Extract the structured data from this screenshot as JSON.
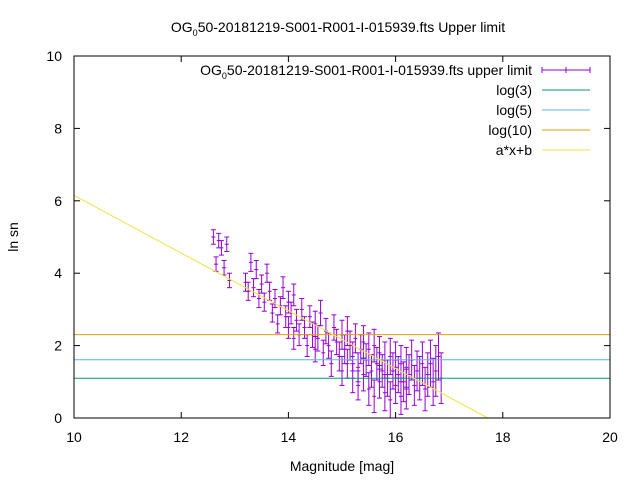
{
  "chart_data": {
    "type": "scatter",
    "title": {
      "main": "OG",
      "sub": "0",
      "rest": "50-20181219-S001-R001-I-015939.fts Upper limit"
    },
    "xlabel": "Magnitude [mag]",
    "ylabel": "ln sn",
    "xlim": [
      10,
      20
    ],
    "ylim": [
      0,
      10
    ],
    "x_ticks": [
      "10",
      "12",
      "14",
      "16",
      "18",
      "20"
    ],
    "y_ticks": [
      "0",
      "2",
      "4",
      "6",
      "8",
      "10"
    ],
    "grid": false,
    "legend_position": "top-right",
    "series": [
      {
        "name": {
          "main": "OG",
          "sub": "0",
          "rest": "50-20181219-S001-R001-I-015939.fts upper limit"
        },
        "kind": "errorbars",
        "color": "#9400d3",
        "points": [
          [
            12.6,
            5.0,
            0.2
          ],
          [
            12.65,
            4.25,
            0.2
          ],
          [
            12.7,
            4.9,
            0.2
          ],
          [
            12.75,
            4.7,
            0.2
          ],
          [
            12.8,
            4.15,
            0.2
          ],
          [
            12.85,
            4.8,
            0.2
          ],
          [
            12.9,
            3.8,
            0.2
          ],
          [
            13.2,
            3.75,
            0.25
          ],
          [
            13.25,
            3.5,
            0.25
          ],
          [
            13.3,
            4.3,
            0.25
          ],
          [
            13.35,
            3.6,
            0.25
          ],
          [
            13.4,
            4.1,
            0.25
          ],
          [
            13.45,
            3.3,
            0.25
          ],
          [
            13.5,
            3.7,
            0.25
          ],
          [
            13.55,
            3.2,
            0.25
          ],
          [
            13.6,
            4.0,
            0.25
          ],
          [
            13.65,
            3.5,
            0.25
          ],
          [
            13.7,
            2.9,
            0.25
          ],
          [
            13.75,
            3.3,
            0.25
          ],
          [
            13.8,
            2.6,
            0.25
          ],
          [
            13.85,
            3.1,
            0.25
          ],
          [
            13.9,
            3.6,
            0.3
          ],
          [
            13.95,
            2.8,
            0.3
          ],
          [
            14.0,
            3.2,
            0.3
          ],
          [
            14.0,
            2.5,
            0.3
          ],
          [
            14.05,
            2.9,
            0.3
          ],
          [
            14.1,
            2.2,
            0.3
          ],
          [
            14.1,
            3.4,
            0.3
          ],
          [
            14.15,
            2.7,
            0.3
          ],
          [
            14.2,
            2.3,
            0.3
          ],
          [
            14.25,
            3.0,
            0.3
          ],
          [
            14.3,
            2.5,
            0.3
          ],
          [
            14.35,
            2.0,
            0.3
          ],
          [
            14.4,
            2.8,
            0.3
          ],
          [
            14.45,
            2.3,
            0.35
          ],
          [
            14.5,
            1.9,
            0.35
          ],
          [
            14.5,
            2.6,
            0.35
          ],
          [
            14.55,
            2.2,
            0.35
          ],
          [
            14.6,
            2.9,
            0.35
          ],
          [
            14.65,
            1.8,
            0.35
          ],
          [
            14.7,
            2.4,
            0.35
          ],
          [
            14.75,
            2.0,
            0.35
          ],
          [
            14.8,
            1.5,
            0.35
          ],
          [
            14.85,
            2.5,
            0.35
          ],
          [
            14.9,
            2.1,
            0.35
          ],
          [
            14.95,
            1.7,
            0.4
          ],
          [
            15.0,
            2.3,
            0.4
          ],
          [
            15.0,
            1.3,
            0.4
          ],
          [
            15.05,
            1.9,
            0.4
          ],
          [
            15.1,
            1.5,
            0.4
          ],
          [
            15.1,
            2.4,
            0.4
          ],
          [
            15.15,
            2.0,
            0.4
          ],
          [
            15.2,
            1.1,
            0.4
          ],
          [
            15.2,
            1.7,
            0.4
          ],
          [
            15.25,
            2.2,
            0.4
          ],
          [
            15.3,
            1.4,
            0.4
          ],
          [
            15.3,
            0.9,
            0.4
          ],
          [
            15.35,
            1.9,
            0.4
          ],
          [
            15.4,
            1.2,
            0.45
          ],
          [
            15.4,
            2.1,
            0.45
          ],
          [
            15.45,
            1.6,
            0.45
          ],
          [
            15.5,
            0.8,
            0.45
          ],
          [
            15.5,
            1.9,
            0.45
          ],
          [
            15.55,
            1.3,
            0.45
          ],
          [
            15.6,
            2.0,
            0.45
          ],
          [
            15.6,
            0.6,
            0.45
          ],
          [
            15.65,
            1.5,
            0.45
          ],
          [
            15.7,
            1.0,
            0.45
          ],
          [
            15.7,
            1.8,
            0.45
          ],
          [
            15.75,
            1.3,
            0.45
          ],
          [
            15.8,
            0.7,
            0.5
          ],
          [
            15.8,
            1.6,
            0.5
          ],
          [
            15.85,
            1.1,
            0.5
          ],
          [
            15.9,
            1.7,
            0.5
          ],
          [
            15.9,
            0.5,
            0.5
          ],
          [
            15.95,
            1.3,
            0.5
          ],
          [
            16.0,
            0.9,
            0.5
          ],
          [
            16.0,
            1.6,
            0.5
          ],
          [
            16.05,
            1.2,
            0.5
          ],
          [
            16.1,
            0.6,
            0.5
          ],
          [
            16.1,
            1.5,
            0.5
          ],
          [
            16.15,
            1.0,
            0.55
          ],
          [
            16.2,
            1.4,
            0.55
          ],
          [
            16.2,
            0.8,
            0.55
          ],
          [
            16.25,
            1.2,
            0.55
          ],
          [
            16.3,
            1.6,
            0.55
          ],
          [
            16.35,
            0.9,
            0.55
          ],
          [
            16.4,
            1.3,
            0.55
          ],
          [
            16.45,
            1.1,
            0.6
          ],
          [
            16.5,
            1.5,
            0.6
          ],
          [
            16.55,
            0.8,
            0.6
          ],
          [
            16.6,
            1.2,
            0.6
          ],
          [
            16.65,
            1.5,
            0.65
          ],
          [
            16.7,
            1.0,
            0.65
          ],
          [
            16.75,
            1.3,
            0.7
          ],
          [
            16.8,
            1.7,
            0.65
          ],
          [
            16.85,
            1.1,
            0.7
          ]
        ]
      },
      {
        "name": "log(3)",
        "kind": "hline",
        "color": "#009e73",
        "y": 1.0986
      },
      {
        "name": "log(5)",
        "kind": "hline",
        "color": "#56b4e9",
        "y": 1.6094
      },
      {
        "name": "log(10)",
        "kind": "hline",
        "color": "#e69f00",
        "y": 2.3026
      },
      {
        "name": "a*x+b",
        "kind": "line",
        "color": "#f0e442",
        "x": [
          10,
          17.72
        ],
        "y": [
          6.15,
          0
        ]
      }
    ]
  }
}
